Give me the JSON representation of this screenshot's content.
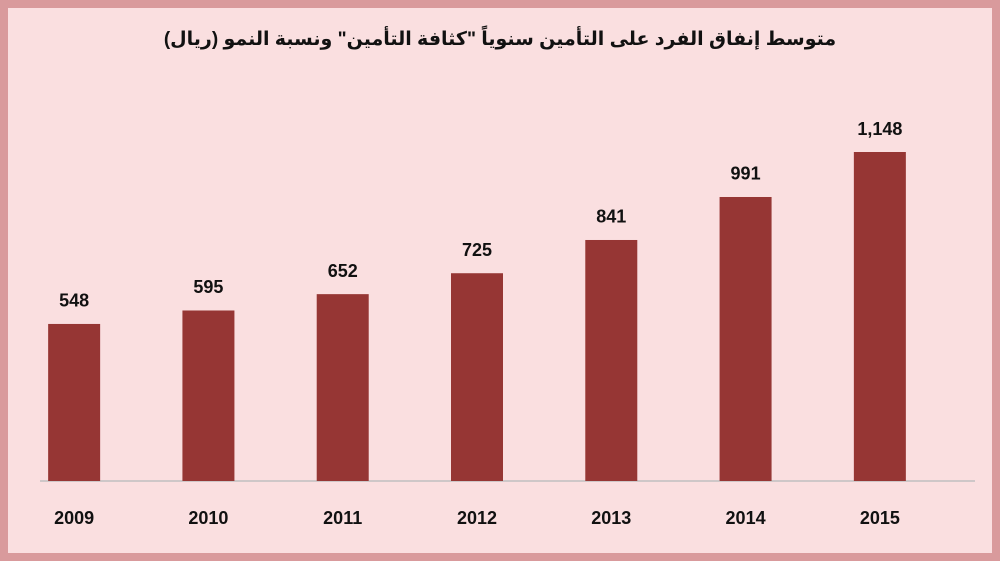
{
  "chart_data": {
    "type": "bar",
    "title": "متوسط إنفاق الفرد على التأمين سنوياً \"كثافة التأمين\" ونسبة النمو (ريال)",
    "categories": [
      "2009",
      "2010",
      "2011",
      "2012",
      "2013",
      "2014",
      "2015"
    ],
    "values": [
      548,
      595,
      652,
      725,
      841,
      991,
      1148
    ],
    "value_labels": [
      "548",
      "595",
      "652",
      "725",
      "841",
      "991",
      "1,148"
    ],
    "color": "#963634"
  }
}
